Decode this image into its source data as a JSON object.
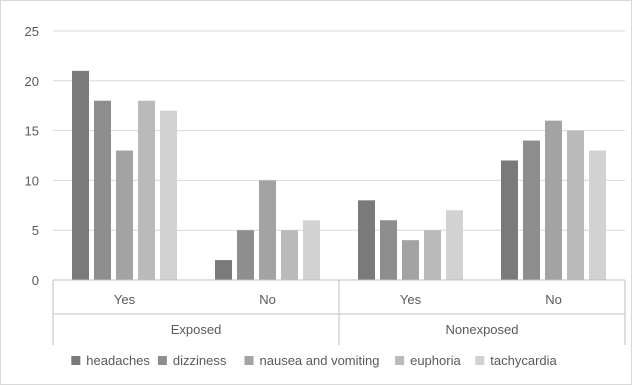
{
  "chart_data": {
    "type": "bar",
    "group_levels": [
      {
        "label": "Exposed",
        "categories": [
          "Yes",
          "No"
        ]
      },
      {
        "label": "Nonexposed",
        "categories": [
          "Yes",
          "No"
        ]
      }
    ],
    "categories": [
      "Yes",
      "No",
      "Yes",
      "No"
    ],
    "series": [
      {
        "name": "headaches",
        "color": "#7a7a7a",
        "values": [
          21,
          2,
          8,
          12
        ]
      },
      {
        "name": "dizziness",
        "color": "#8e8e8e",
        "values": [
          18,
          5,
          6,
          14
        ]
      },
      {
        "name": "nausea and vomiting",
        "color": "#a3a3a3",
        "values": [
          13,
          10,
          4,
          16
        ]
      },
      {
        "name": "euphoria",
        "color": "#bababa",
        "values": [
          18,
          5,
          5,
          15
        ]
      },
      {
        "name": "tachycardia",
        "color": "#d2d2d2",
        "values": [
          17,
          6,
          7,
          13
        ]
      }
    ],
    "ylim": [
      0,
      25
    ],
    "yticks": [
      0,
      5,
      10,
      15,
      20,
      25
    ],
    "grid": true,
    "legend_position": "bottom"
  }
}
